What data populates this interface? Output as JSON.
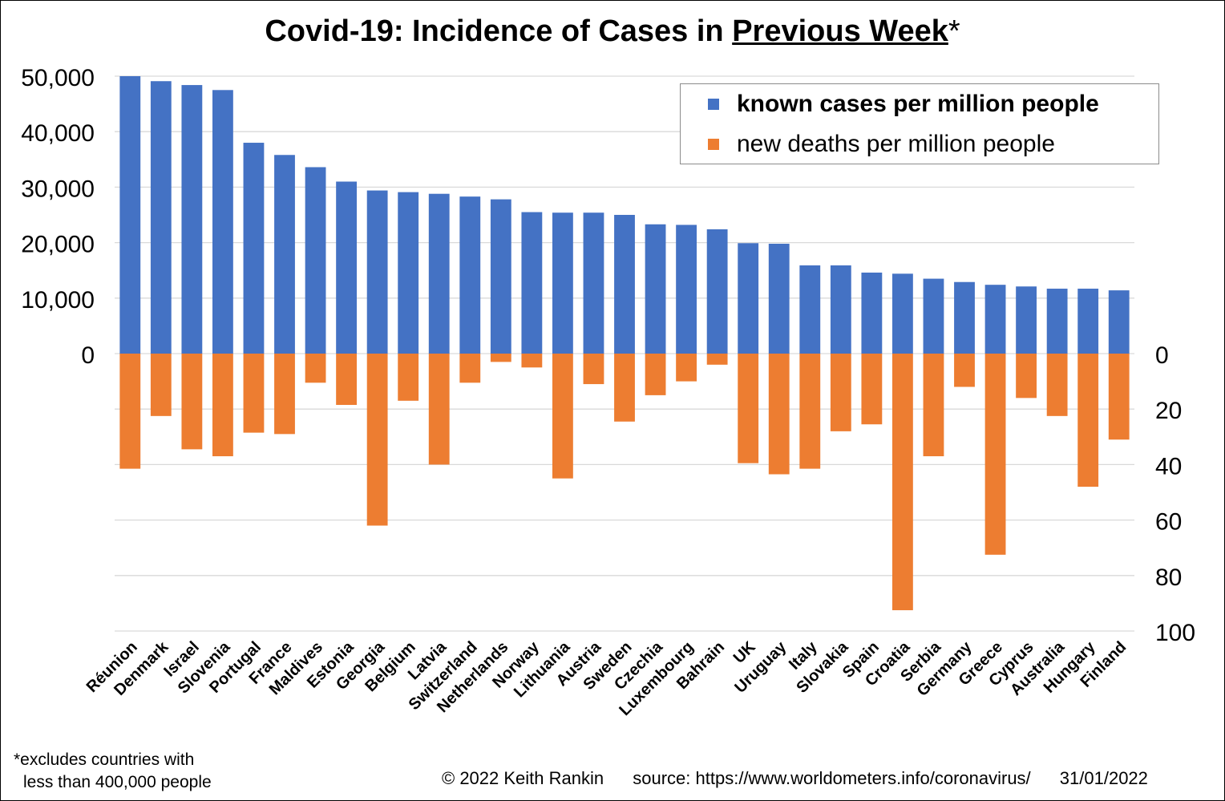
{
  "title": {
    "main": "Covid-19: Incidence of Cases in ",
    "underlined": "Previous Week",
    "suffix": "*"
  },
  "legend": {
    "cases_label": "known cases per million people",
    "deaths_label": "new deaths per million people"
  },
  "footnote": {
    "line1": "*excludes countries with",
    "line2": "less than 400,000  people"
  },
  "credit": {
    "copyright": "© 2022  Keith Rankin",
    "source": "source: https://www.worldometers.info/coronavirus/",
    "date": "31/01/2022"
  },
  "colors": {
    "cases": "#4472C4",
    "deaths": "#ED7D31",
    "grid": "#D9D9D9"
  },
  "chart_data": {
    "type": "bar",
    "title": "Covid-19: Incidence of Cases in Previous Week*",
    "categories": [
      "Réunion",
      "Denmark",
      "Israel",
      "Slovenia",
      "Portugal",
      "France",
      "Maldives",
      "Estonia",
      "Georgia",
      "Belgium",
      "Latvia",
      "Switzerland",
      "Netherlands",
      "Norway",
      "Lithuania",
      "Austria",
      "Sweden",
      "Czechia",
      "Luxembourg",
      "Bahrain",
      "UK",
      "Uruguay",
      "Italy",
      "Slovakia",
      "Spain",
      "Croatia",
      "Serbia",
      "Germany",
      "Greece",
      "Cyprus",
      "Australia",
      "Hungary",
      "Finland"
    ],
    "series": [
      {
        "name": "known cases per million people",
        "axis": "left",
        "direction": "up",
        "values": [
          50000,
          49100,
          48400,
          47500,
          38000,
          35800,
          33600,
          31000,
          29400,
          29100,
          28800,
          28300,
          27800,
          25500,
          25400,
          25400,
          25000,
          23300,
          23200,
          22400,
          19900,
          19800,
          15900,
          15900,
          14600,
          14400,
          13500,
          12900,
          12400,
          12100,
          11700,
          11700,
          11400
        ]
      },
      {
        "name": "new deaths per million people",
        "axis": "right",
        "direction": "down",
        "values": [
          41.5,
          22.5,
          34.5,
          37,
          28.5,
          29,
          10.5,
          18.5,
          62,
          17,
          40,
          10.5,
          3,
          5,
          45,
          11,
          24.5,
          15,
          10,
          4,
          39.5,
          43.5,
          41.5,
          28,
          25.5,
          92.5,
          37,
          12,
          72.5,
          16,
          22.5,
          48,
          31
        ]
      }
    ],
    "left_axis": {
      "ylim": [
        0,
        50000
      ],
      "ticks": [
        "0",
        "10,000",
        "20,000",
        "30,000",
        "40,000",
        "50,000"
      ]
    },
    "right_axis": {
      "ylim": [
        0,
        100
      ],
      "inverted": true,
      "ticks": [
        "0",
        "20",
        "40",
        "60",
        "80",
        "100"
      ]
    },
    "grid": true,
    "legend_position": "top-right"
  }
}
